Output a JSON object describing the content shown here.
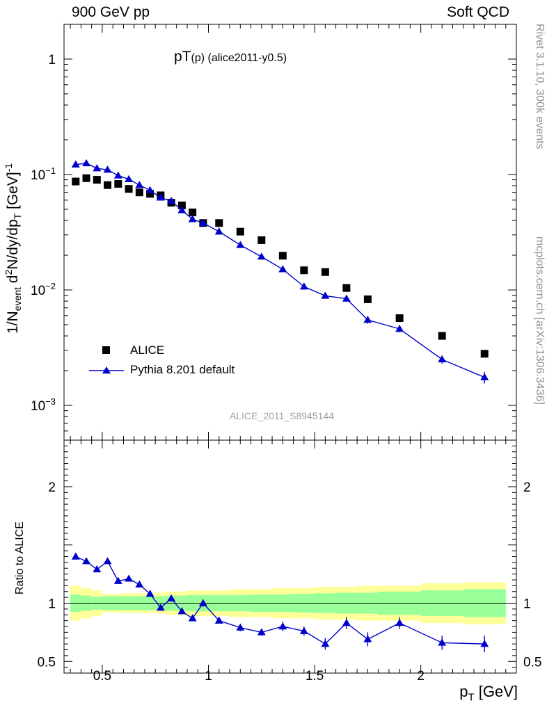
{
  "header": {
    "left": "900 GeV pp",
    "right": "Soft QCD"
  },
  "title_main": "pT",
  "title_sub": "(p)",
  "title_rest": " (alice2011-y0.5)",
  "watermark": "ALICE_2011_S8945144",
  "side": {
    "rivet": "Rivet 3.1.10,  300k events",
    "source": "mcplots.cern.ch [arXiv:1306.3436]"
  },
  "ylabel_main": {
    "a": "1/N",
    "a_sub": "event",
    "b": " d",
    "b_sup": "2",
    "c": "N/dy/dp",
    "c_sub": "T",
    "d": " [GeV]",
    "d_sup": "-1"
  },
  "ylabel_ratio": "Ratio to ALICE",
  "xlabel": {
    "a": "p",
    "a_sub": "T",
    "b": " [GeV]"
  },
  "legend": {
    "data": "ALICE",
    "mc": "Pythia 8.201 default"
  },
  "colors": {
    "data": "#000000",
    "mc": "#0000cc",
    "band_inner": "#99ff99",
    "band_outer": "#ffff99"
  },
  "chart_data": [
    {
      "type": "scatter",
      "scale_y": "log",
      "xlim": [
        0.32,
        2.45
      ],
      "ylim": [
        0.0005,
        2.0
      ],
      "x_ticks": [
        0.5,
        1,
        1.5,
        2
      ],
      "y_ticks": [
        {
          "value": 0.001,
          "label": "10^-3"
        },
        {
          "value": 0.01,
          "label": "10^-2"
        },
        {
          "value": 0.1,
          "label": "10^-1"
        },
        {
          "value": 1,
          "label": "1"
        }
      ],
      "x": [
        0.375,
        0.425,
        0.475,
        0.525,
        0.575,
        0.625,
        0.675,
        0.725,
        0.775,
        0.825,
        0.875,
        0.925,
        0.975,
        1.05,
        1.15,
        1.25,
        1.35,
        1.45,
        1.55,
        1.65,
        1.75,
        1.9,
        2.1,
        2.3
      ],
      "series": [
        {
          "name": "ALICE",
          "marker": "square",
          "values": [
            0.087,
            0.093,
            0.09,
            0.081,
            0.083,
            0.075,
            0.07,
            0.068,
            0.066,
            0.057,
            0.054,
            0.047,
            0.038,
            0.038,
            0.032,
            0.027,
            0.0198,
            0.0148,
            0.0143,
            0.0104,
            0.0083,
            0.0057,
            0.004,
            0.0028
          ]
        },
        {
          "name": "Pythia 8.201 default",
          "marker": "triangle",
          "values": [
            0.122,
            0.125,
            0.113,
            0.11,
            0.098,
            0.091,
            0.081,
            0.073,
            0.063,
            0.059,
            0.049,
            0.041,
            0.038,
            0.032,
            0.0245,
            0.0194,
            0.0151,
            0.0107,
            0.0089,
            0.0084,
            0.0055,
            0.0046,
            0.0025,
            0.00175
          ],
          "errors": [
            0,
            0,
            0,
            0,
            0,
            0,
            0,
            0,
            0,
            0,
            0,
            0,
            0,
            0.001,
            0.001,
            0.0008,
            0.0007,
            0.0006,
            0.0005,
            0.0005,
            0.0004,
            0.0003,
            0.0002,
            0.0002
          ]
        }
      ]
    },
    {
      "type": "line",
      "xlim": [
        0.32,
        2.45
      ],
      "ylim": [
        0.4,
        2.4
      ],
      "x_ticks": [
        0.5,
        1,
        1.5,
        2
      ],
      "y_ticks": [
        0.5,
        1,
        2
      ],
      "reference": 1.0,
      "band_edges": [
        0.35,
        0.4,
        0.45,
        0.5,
        0.55,
        0.6,
        0.65,
        0.7,
        0.75,
        0.8,
        0.85,
        0.9,
        0.95,
        1.0,
        1.1,
        1.2,
        1.3,
        1.4,
        1.5,
        1.6,
        1.7,
        1.8,
        2.0,
        2.2,
        2.4
      ],
      "band_inner": [
        0.075,
        0.065,
        0.055,
        0.06,
        0.06,
        0.06,
        0.06,
        0.06,
        0.06,
        0.065,
        0.065,
        0.07,
        0.07,
        0.07,
        0.07,
        0.075,
        0.075,
        0.08,
        0.085,
        0.09,
        0.09,
        0.1,
        0.11,
        0.12
      ],
      "band_outer": [
        0.15,
        0.13,
        0.11,
        0.08,
        0.08,
        0.085,
        0.085,
        0.085,
        0.09,
        0.1,
        0.1,
        0.11,
        0.11,
        0.11,
        0.12,
        0.12,
        0.13,
        0.13,
        0.14,
        0.14,
        0.15,
        0.15,
        0.17,
        0.18
      ],
      "x": [
        0.375,
        0.425,
        0.475,
        0.525,
        0.575,
        0.625,
        0.675,
        0.725,
        0.775,
        0.825,
        0.875,
        0.925,
        0.975,
        1.05,
        1.15,
        1.25,
        1.35,
        1.45,
        1.55,
        1.65,
        1.75,
        1.9,
        2.1,
        2.3
      ],
      "series": [
        {
          "name": "Pythia 8.201 default",
          "values": [
            1.4,
            1.36,
            1.29,
            1.36,
            1.19,
            1.21,
            1.16,
            1.08,
            0.96,
            1.04,
            0.93,
            0.87,
            1.0,
            0.85,
            0.79,
            0.75,
            0.8,
            0.76,
            0.65,
            0.83,
            0.69,
            0.83,
            0.66,
            0.65
          ],
          "errors": [
            0.02,
            0.02,
            0.02,
            0.02,
            0.02,
            0.02,
            0.02,
            0.02,
            0.02,
            0.02,
            0.02,
            0.02,
            0.03,
            0.02,
            0.03,
            0.03,
            0.04,
            0.04,
            0.05,
            0.05,
            0.06,
            0.05,
            0.06,
            0.07
          ]
        }
      ]
    }
  ]
}
